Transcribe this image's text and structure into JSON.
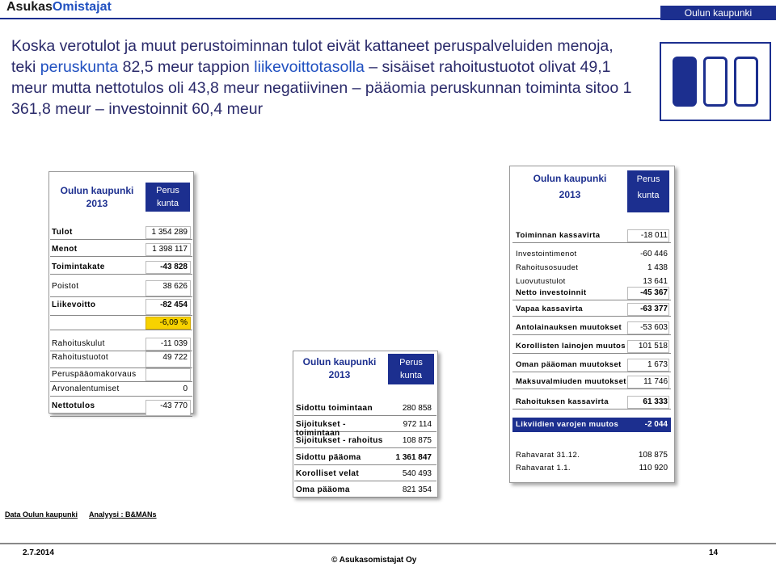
{
  "brand": {
    "part1": "Asukas",
    "part2": "Omistajat"
  },
  "city_tag": "Oulun kaupunki",
  "headline": {
    "t1": "Koska verotulot ja muut perustoiminnan tulot eivät kattaneet peruspalveluiden menoja, teki ",
    "t2": "peruskunta",
    "t3": " 82,5 meur tappion ",
    "t4": "liikevoittotasolla",
    "t5": " – sisäiset rahoitustuotot olivat 49,1 meur mutta nettotulos oli 43,8 meur negatiivinen – pääomia peruskunnan toiminta sitoo 1 361,8 meur – investoinnit 60,4 meur"
  },
  "left": {
    "header": {
      "city": "Oulun kaupunki",
      "year": "2013",
      "perus": "Perus",
      "kunta": "kunta"
    },
    "rows": [
      {
        "label": "Tulot",
        "value": "1 354 289"
      },
      {
        "label": "Menot",
        "value": "1 398 117"
      },
      {
        "label": "Toimintakate",
        "value": "-43 828"
      },
      {
        "label": "Poistot",
        "value": "38 626"
      },
      {
        "label": "Liikevoitto",
        "value": "-82 454"
      },
      {
        "label": "",
        "value": "-6,09 %"
      },
      {
        "label": "Rahoituskulut",
        "value": "-11 039"
      },
      {
        "label": "Rahoitustuotot",
        "value": "49 722"
      },
      {
        "label": "Peruspääomakorvaus",
        "value": ""
      },
      {
        "label": "Arvonalentumiset",
        "value": "0"
      },
      {
        "label": "Nettotulos",
        "value": "-43 770"
      }
    ]
  },
  "middle": {
    "header": {
      "city": "Oulun kaupunki",
      "year": "2013",
      "perus": "Perus",
      "kunta": "kunta"
    },
    "rows": [
      {
        "label": "Sidottu toimintaan",
        "value": "280 858"
      },
      {
        "label": "Sijoitukset - toimintaan",
        "value": "972 114"
      },
      {
        "label": "Sijoitukset - rahoitus",
        "value": "108 875"
      },
      {
        "label": "Sidottu pääoma",
        "value": "1 361 847"
      },
      {
        "label": "Korolliset velat",
        "value": "540 493"
      },
      {
        "label": "Oma pääoma",
        "value": "821 354"
      }
    ]
  },
  "right": {
    "header": {
      "city": "Oulun kaupunki",
      "year": "2013",
      "perus": "Perus",
      "kunta": "kunta"
    },
    "rows": [
      {
        "label": "Toiminnan kassavirta",
        "value": "-18 011"
      },
      {
        "label": "Investointimenot",
        "value": "-60 446"
      },
      {
        "label": "Rahoitusosuudet",
        "value": "1 438"
      },
      {
        "label": "Luovutustulot",
        "value": "13 641"
      },
      {
        "label": "Netto investoinnit",
        "value": "-45 367"
      },
      {
        "label": "Vapaa kassavirta",
        "value": "-63 377"
      },
      {
        "label": "Antolainauksen muutokset",
        "value": "-53 603"
      },
      {
        "label": "Korollisten lainojen muutos",
        "value": "101 518"
      },
      {
        "label": "Oman pääoman muutokset",
        "value": "1 673"
      },
      {
        "label": "Maksuvalmiuden muutokset",
        "value": "11 746"
      },
      {
        "label": "Rahoituksen kassavirta",
        "value": "61 333"
      },
      {
        "label": "Likviidien varojen muutos",
        "value": "-2 044"
      },
      {
        "label": "Rahavarat 31.12.",
        "value": "108 875"
      },
      {
        "label": "Rahavarat 1.1.",
        "value": "110 920"
      }
    ]
  },
  "footer": {
    "src1": "Data Oulun kaupunki",
    "src2": "Analyysi : B&MANs",
    "date": "2.7.2014",
    "copyright": "© Asukasomistajat Oy",
    "page": "14"
  }
}
